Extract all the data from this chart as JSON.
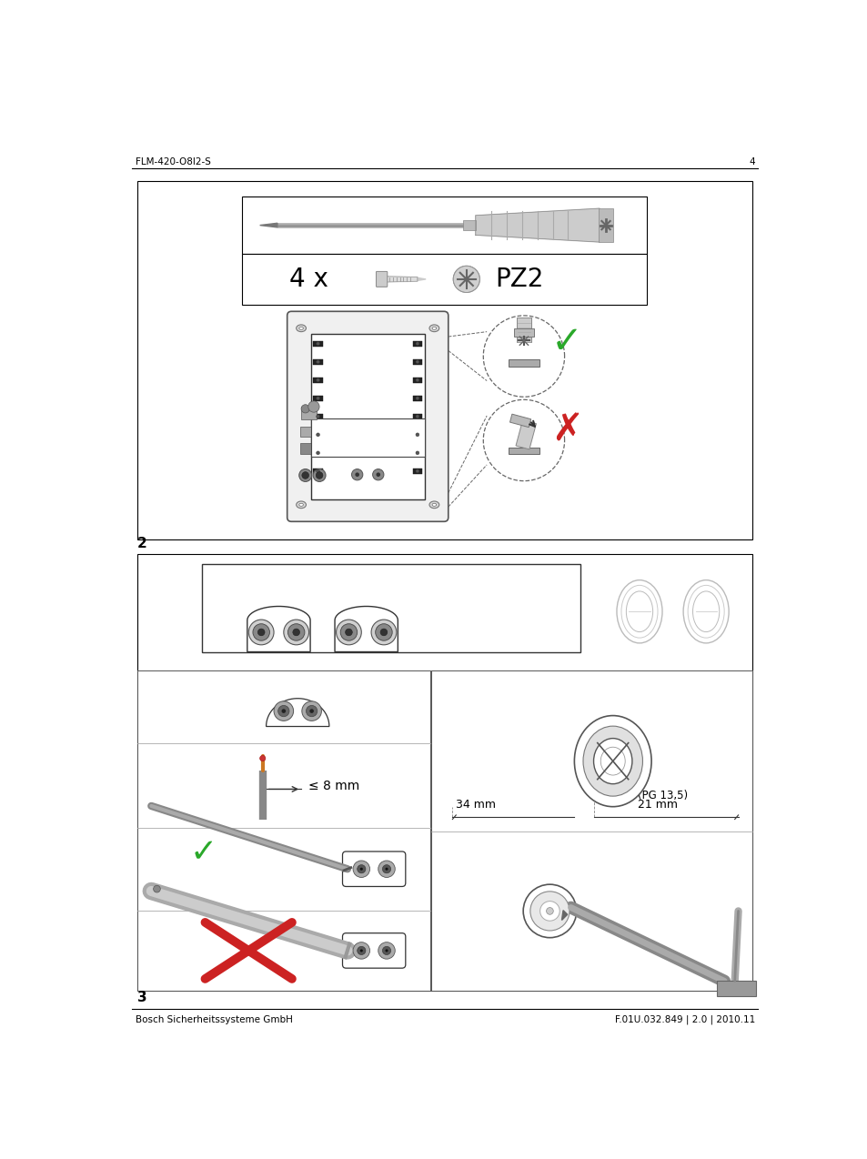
{
  "page_title_left": "FLM-420-O8I2-S",
  "page_number": "4",
  "footer_left": "Bosch Sicherheitssysteme GmbH",
  "footer_right": "F.01U.032.849 | 2.0 | 2010.11",
  "panel1_number": "2",
  "panel2_number": "3",
  "text_4x": "4 x",
  "text_pz2": "PZ2",
  "text_8mm": "≤ 8 mm",
  "text_34mm": "34 mm",
  "text_21mm": "21 mm",
  "text_pg135": "(PG 13,5)",
  "bg_color": "#ffffff",
  "green_check": "#2aa82a",
  "red_cross": "#cc2222"
}
